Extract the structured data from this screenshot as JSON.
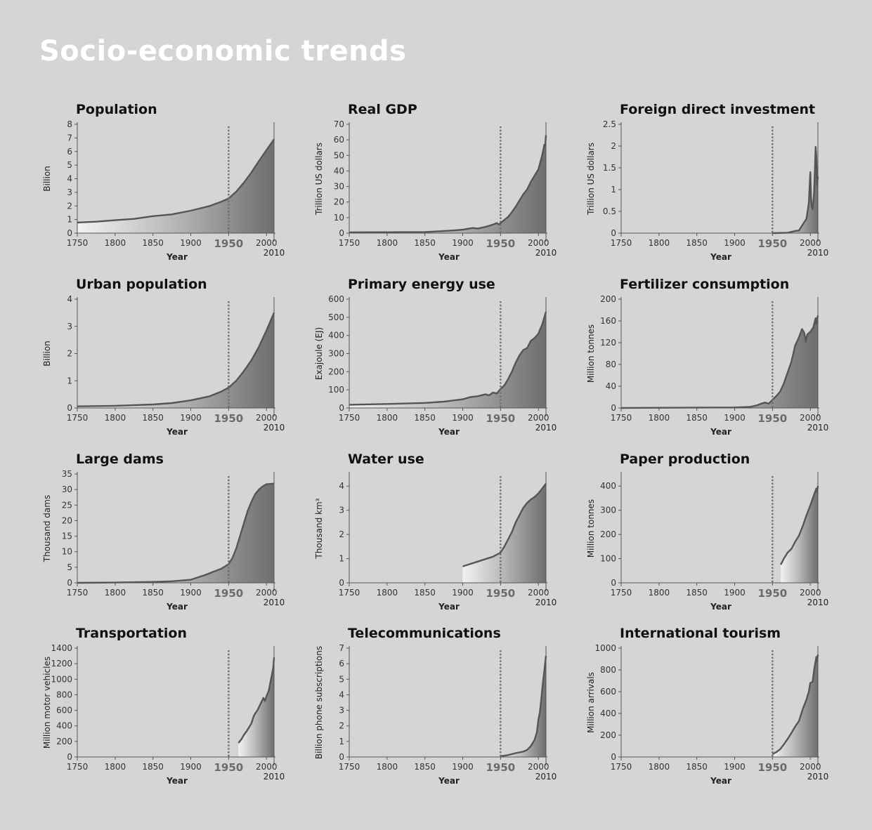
{
  "title": "Socio-economic trends",
  "colors": {
    "background": "#d4d5d7",
    "title": "#ffffff",
    "line": "#555555",
    "axis": "#555555",
    "dotted_marker": "#707070",
    "fill_light": "#f2f2f2",
    "fill_dark": "#6e6e6e"
  },
  "chart_data": [
    {
      "type": "area",
      "title": "Population",
      "ylabel": "Billion",
      "xlabel": "Year",
      "xlim": [
        1750,
        2010
      ],
      "x_ticks": [
        "1750",
        "1800",
        "1850",
        "1900",
        "1950",
        "2000"
      ],
      "x_end_label": "2010",
      "ylim": [
        0,
        8
      ],
      "y_ticks": [
        "0",
        "1",
        "2",
        "3",
        "4",
        "5",
        "6",
        "7",
        "8"
      ],
      "marker_year": 1950,
      "points": [
        [
          1750,
          0.78
        ],
        [
          1775,
          0.84
        ],
        [
          1800,
          0.95
        ],
        [
          1825,
          1.05
        ],
        [
          1850,
          1.25
        ],
        [
          1875,
          1.38
        ],
        [
          1900,
          1.65
        ],
        [
          1925,
          2.0
        ],
        [
          1940,
          2.3
        ],
        [
          1950,
          2.55
        ],
        [
          1960,
          3.05
        ],
        [
          1970,
          3.7
        ],
        [
          1980,
          4.45
        ],
        [
          1990,
          5.3
        ],
        [
          2000,
          6.1
        ],
        [
          2010,
          6.9
        ]
      ]
    },
    {
      "type": "area",
      "title": "Real GDP",
      "ylabel": "Trillion US dollars",
      "xlabel": "Year",
      "xlim": [
        1750,
        2010
      ],
      "x_ticks": [
        "1750",
        "1800",
        "1850",
        "1900",
        "1950",
        "2000"
      ],
      "x_end_label": "2010",
      "ylim": [
        0,
        70
      ],
      "y_ticks": [
        "0",
        "10",
        "20",
        "30",
        "40",
        "50",
        "60",
        "70"
      ],
      "marker_year": 1950,
      "points": [
        [
          1750,
          0.5
        ],
        [
          1800,
          0.6
        ],
        [
          1850,
          0.7
        ],
        [
          1870,
          1.2
        ],
        [
          1890,
          1.8
        ],
        [
          1900,
          2.2
        ],
        [
          1913,
          3.3
        ],
        [
          1920,
          3.0
        ],
        [
          1930,
          4.0
        ],
        [
          1940,
          5.5
        ],
        [
          1945,
          6.5
        ],
        [
          1948,
          5.5
        ],
        [
          1950,
          6.5
        ],
        [
          1955,
          8.5
        ],
        [
          1960,
          10.5
        ],
        [
          1965,
          13.5
        ],
        [
          1970,
          17
        ],
        [
          1975,
          21
        ],
        [
          1980,
          25
        ],
        [
          1985,
          28
        ],
        [
          1990,
          33
        ],
        [
          1995,
          37
        ],
        [
          2000,
          41
        ],
        [
          2005,
          50
        ],
        [
          2008,
          57
        ],
        [
          2009,
          56
        ],
        [
          2010,
          63
        ]
      ]
    },
    {
      "type": "area",
      "title": "Foreign direct investment",
      "ylabel": "Trillion US dollars",
      "xlabel": "Year",
      "xlim": [
        1750,
        2010
      ],
      "x_ticks": [
        "1750",
        "1800",
        "1850",
        "1900",
        "1950",
        "2000"
      ],
      "x_end_label": "2010",
      "ylim": [
        0,
        2.5
      ],
      "y_ticks": [
        "0",
        "0.5",
        "1",
        "1.5",
        "2",
        "2.5"
      ],
      "marker_year": 1950,
      "points": [
        [
          1950,
          0
        ],
        [
          1970,
          0.01
        ],
        [
          1980,
          0.05
        ],
        [
          1985,
          0.06
        ],
        [
          1990,
          0.2
        ],
        [
          1995,
          0.33
        ],
        [
          1998,
          0.7
        ],
        [
          2000,
          1.4
        ],
        [
          2001,
          0.8
        ],
        [
          2002,
          0.6
        ],
        [
          2003,
          0.55
        ],
        [
          2004,
          0.7
        ],
        [
          2005,
          0.95
        ],
        [
          2006,
          1.45
        ],
        [
          2007,
          1.98
        ],
        [
          2008,
          1.75
        ],
        [
          2009,
          1.1
        ],
        [
          2010,
          1.3
        ]
      ]
    },
    {
      "type": "area",
      "title": "Urban population",
      "ylabel": "Billion",
      "xlabel": "Year",
      "xlim": [
        1750,
        2010
      ],
      "x_ticks": [
        "1750",
        "1800",
        "1850",
        "1900",
        "1950",
        "2000"
      ],
      "x_end_label": "2010",
      "ylim": [
        0,
        4
      ],
      "y_ticks": [
        "0",
        "1",
        "2",
        "3",
        "4"
      ],
      "marker_year": 1950,
      "points": [
        [
          1750,
          0.06
        ],
        [
          1800,
          0.08
        ],
        [
          1850,
          0.13
        ],
        [
          1875,
          0.18
        ],
        [
          1900,
          0.28
        ],
        [
          1925,
          0.43
        ],
        [
          1940,
          0.6
        ],
        [
          1950,
          0.75
        ],
        [
          1960,
          1.0
        ],
        [
          1970,
          1.35
        ],
        [
          1980,
          1.75
        ],
        [
          1990,
          2.25
        ],
        [
          2000,
          2.85
        ],
        [
          2010,
          3.5
        ]
      ]
    },
    {
      "type": "area",
      "title": "Primary energy use",
      "ylabel": "Exajoule (EJ)",
      "xlabel": "Year",
      "xlim": [
        1750,
        2010
      ],
      "x_ticks": [
        "1750",
        "1800",
        "1850",
        "1900",
        "1950",
        "2000"
      ],
      "x_end_label": "2010",
      "ylim": [
        0,
        600
      ],
      "y_ticks": [
        "0",
        "100",
        "200",
        "300",
        "400",
        "500",
        "600"
      ],
      "marker_year": 1950,
      "points": [
        [
          1750,
          18
        ],
        [
          1800,
          22
        ],
        [
          1850,
          28
        ],
        [
          1875,
          35
        ],
        [
          1900,
          48
        ],
        [
          1910,
          60
        ],
        [
          1920,
          65
        ],
        [
          1930,
          75
        ],
        [
          1935,
          70
        ],
        [
          1940,
          85
        ],
        [
          1945,
          80
        ],
        [
          1950,
          105
        ],
        [
          1955,
          125
        ],
        [
          1960,
          160
        ],
        [
          1965,
          200
        ],
        [
          1970,
          250
        ],
        [
          1975,
          290
        ],
        [
          1980,
          320
        ],
        [
          1985,
          330
        ],
        [
          1990,
          370
        ],
        [
          1995,
          385
        ],
        [
          2000,
          410
        ],
        [
          2005,
          460
        ],
        [
          2010,
          530
        ]
      ]
    },
    {
      "type": "area",
      "title": "Fertilizer consumption",
      "ylabel": "Million tonnes",
      "xlabel": "Year",
      "xlim": [
        1750,
        2010
      ],
      "x_ticks": [
        "1750",
        "1800",
        "1850",
        "1900",
        "1950",
        "2000"
      ],
      "x_end_label": "2010",
      "ylim": [
        0,
        200
      ],
      "y_ticks": [
        "0",
        "40",
        "80",
        "120",
        "160",
        "200"
      ],
      "marker_year": 1950,
      "points": [
        [
          1750,
          0
        ],
        [
          1900,
          1
        ],
        [
          1920,
          2
        ],
        [
          1930,
          5
        ],
        [
          1935,
          8
        ],
        [
          1940,
          10
        ],
        [
          1945,
          8
        ],
        [
          1950,
          15
        ],
        [
          1955,
          22
        ],
        [
          1960,
          30
        ],
        [
          1965,
          45
        ],
        [
          1970,
          65
        ],
        [
          1975,
          85
        ],
        [
          1980,
          115
        ],
        [
          1985,
          130
        ],
        [
          1989,
          145
        ],
        [
          1992,
          138
        ],
        [
          1994,
          122
        ],
        [
          1996,
          135
        ],
        [
          2000,
          140
        ],
        [
          2004,
          148
        ],
        [
          2007,
          165
        ],
        [
          2008,
          155
        ],
        [
          2010,
          170
        ]
      ]
    },
    {
      "type": "area",
      "title": "Large dams",
      "ylabel": "Thousand dams",
      "xlabel": "Year",
      "xlim": [
        1750,
        2010
      ],
      "x_ticks": [
        "1750",
        "1800",
        "1850",
        "1900",
        "1950",
        "2000"
      ],
      "x_end_label": "2010",
      "ylim": [
        0,
        35
      ],
      "y_ticks": [
        "0",
        "5",
        "10",
        "15",
        "20",
        "25",
        "30",
        "35"
      ],
      "marker_year": 1950,
      "points": [
        [
          1750,
          0
        ],
        [
          1800,
          0.1
        ],
        [
          1850,
          0.3
        ],
        [
          1875,
          0.5
        ],
        [
          1900,
          1.0
        ],
        [
          1910,
          1.8
        ],
        [
          1920,
          2.6
        ],
        [
          1930,
          3.6
        ],
        [
          1940,
          4.5
        ],
        [
          1950,
          6
        ],
        [
          1955,
          8
        ],
        [
          1960,
          11
        ],
        [
          1965,
          15
        ],
        [
          1970,
          19
        ],
        [
          1975,
          23
        ],
        [
          1980,
          26
        ],
        [
          1985,
          28.5
        ],
        [
          1990,
          30
        ],
        [
          1995,
          31
        ],
        [
          2000,
          31.7
        ],
        [
          2010,
          31.9
        ]
      ]
    },
    {
      "type": "area",
      "title": "Water use",
      "ylabel": "Thousand km³",
      "xlabel": "Year",
      "xlim": [
        1750,
        2010
      ],
      "x_ticks": [
        "1750",
        "1800",
        "1850",
        "1900",
        "1950",
        "2000"
      ],
      "x_end_label": "2010",
      "ylim": [
        0,
        4.5
      ],
      "y_ticks": [
        "0",
        "1",
        "2",
        "3",
        "4"
      ],
      "marker_year": 1950,
      "points": [
        [
          1900,
          0.68
        ],
        [
          1910,
          0.78
        ],
        [
          1920,
          0.88
        ],
        [
          1930,
          0.98
        ],
        [
          1940,
          1.08
        ],
        [
          1950,
          1.25
        ],
        [
          1955,
          1.5
        ],
        [
          1960,
          1.8
        ],
        [
          1965,
          2.1
        ],
        [
          1970,
          2.5
        ],
        [
          1975,
          2.8
        ],
        [
          1980,
          3.1
        ],
        [
          1985,
          3.3
        ],
        [
          1990,
          3.45
        ],
        [
          1995,
          3.55
        ],
        [
          2000,
          3.7
        ],
        [
          2005,
          3.9
        ],
        [
          2010,
          4.1
        ]
      ]
    },
    {
      "type": "area",
      "title": "Paper production",
      "ylabel": "Million tonnes",
      "xlabel": "Year",
      "xlim": [
        1750,
        2010
      ],
      "x_ticks": [
        "1750",
        "1800",
        "1850",
        "1900",
        "1950",
        "2000"
      ],
      "x_end_label": "2010",
      "ylim": [
        0,
        450
      ],
      "y_ticks": [
        "0",
        "100",
        "200",
        "300",
        "400"
      ],
      "marker_year": 1950,
      "points": [
        [
          1961,
          75
        ],
        [
          1965,
          100
        ],
        [
          1970,
          125
        ],
        [
          1975,
          140
        ],
        [
          1980,
          170
        ],
        [
          1985,
          195
        ],
        [
          1990,
          235
        ],
        [
          1995,
          280
        ],
        [
          2000,
          320
        ],
        [
          2005,
          365
        ],
        [
          2008,
          390
        ],
        [
          2009,
          375
        ],
        [
          2010,
          400
        ]
      ]
    },
    {
      "type": "area",
      "title": "Transportation",
      "ylabel": "Million motor vehicles",
      "xlabel": "Year",
      "xlim": [
        1750,
        2010
      ],
      "x_ticks": [
        "1750",
        "1800",
        "1850",
        "1900",
        "1950",
        "2000"
      ],
      "x_end_label": "2010",
      "ylim": [
        0,
        1400
      ],
      "y_ticks": [
        "0",
        "200",
        "400",
        "600",
        "800",
        "1000",
        "1200",
        "1400"
      ],
      "marker_year": 1950,
      "points": [
        [
          1963,
          180
        ],
        [
          1967,
          230
        ],
        [
          1970,
          280
        ],
        [
          1975,
          350
        ],
        [
          1980,
          430
        ],
        [
          1983,
          520
        ],
        [
          1985,
          560
        ],
        [
          1988,
          600
        ],
        [
          1990,
          640
        ],
        [
          1993,
          700
        ],
        [
          1996,
          760
        ],
        [
          1998,
          720
        ],
        [
          2000,
          780
        ],
        [
          2003,
          850
        ],
        [
          2005,
          950
        ],
        [
          2007,
          1050
        ],
        [
          2009,
          1150
        ],
        [
          2010,
          1280
        ]
      ]
    },
    {
      "type": "area",
      "title": "Telecommunications",
      "ylabel": "Billion phone subscriptions",
      "xlabel": "Year",
      "xlim": [
        1750,
        2010
      ],
      "x_ticks": [
        "1750",
        "1800",
        "1850",
        "1900",
        "1950",
        "2000"
      ],
      "x_end_label": "2010",
      "ylim": [
        0,
        7
      ],
      "y_ticks": [
        "0",
        "1",
        "2",
        "3",
        "4",
        "5",
        "6",
        "7"
      ],
      "marker_year": 1950,
      "points": [
        [
          1950,
          0.05
        ],
        [
          1955,
          0.08
        ],
        [
          1960,
          0.12
        ],
        [
          1970,
          0.25
        ],
        [
          1980,
          0.35
        ],
        [
          1985,
          0.45
        ],
        [
          1990,
          0.7
        ],
        [
          1995,
          1.1
        ],
        [
          1998,
          1.6
        ],
        [
          2000,
          2.4
        ],
        [
          2002,
          2.9
        ],
        [
          2004,
          3.8
        ],
        [
          2006,
          4.8
        ],
        [
          2008,
          5.6
        ],
        [
          2010,
          6.5
        ]
      ]
    },
    {
      "type": "area",
      "title": "International tourism",
      "ylabel": "Million arrivals",
      "xlabel": "Year",
      "xlim": [
        1750,
        2010
      ],
      "x_ticks": [
        "1750",
        "1800",
        "1850",
        "1900",
        "1950",
        "2000"
      ],
      "x_end_label": "2010",
      "ylim": [
        0,
        1000
      ],
      "y_ticks": [
        "0",
        "200",
        "400",
        "600",
        "800",
        "1000"
      ],
      "marker_year": 1950,
      "points": [
        [
          1950,
          25
        ],
        [
          1955,
          45
        ],
        [
          1960,
          70
        ],
        [
          1965,
          115
        ],
        [
          1970,
          165
        ],
        [
          1975,
          220
        ],
        [
          1980,
          280
        ],
        [
          1985,
          330
        ],
        [
          1990,
          440
        ],
        [
          1995,
          530
        ],
        [
          1998,
          600
        ],
        [
          2000,
          680
        ],
        [
          2003,
          690
        ],
        [
          2005,
          800
        ],
        [
          2008,
          920
        ],
        [
          2009,
          880
        ],
        [
          2010,
          940
        ]
      ]
    }
  ]
}
